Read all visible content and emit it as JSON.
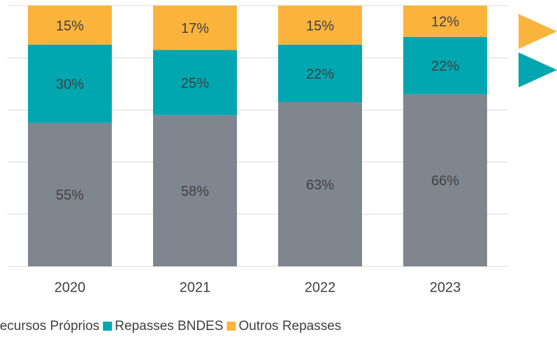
{
  "chart_data": {
    "type": "stacked_bar",
    "categories": [
      "2020",
      "2021",
      "2022",
      "2023"
    ],
    "series": [
      {
        "name": "Recursos Próprios",
        "color": "#7f8690",
        "values": [
          55,
          58,
          63,
          66
        ],
        "value_labels": [
          "55%",
          "58%",
          "63%",
          "66%"
        ]
      },
      {
        "name": "Repasses BNDES",
        "color": "#00a6b0",
        "values": [
          30,
          25,
          22,
          22
        ],
        "value_labels": [
          "30%",
          "25%",
          "22%",
          "22%"
        ]
      },
      {
        "name": "Outros Repasses",
        "color": "#fbb43b",
        "values": [
          15,
          17,
          15,
          12
        ],
        "value_labels": [
          "15%",
          "17%",
          "15%",
          "12%"
        ]
      }
    ],
    "ylim": [
      0,
      100
    ],
    "yticks": [
      0,
      20,
      40,
      60,
      80,
      100
    ],
    "grid": true,
    "legend": "bottom"
  }
}
